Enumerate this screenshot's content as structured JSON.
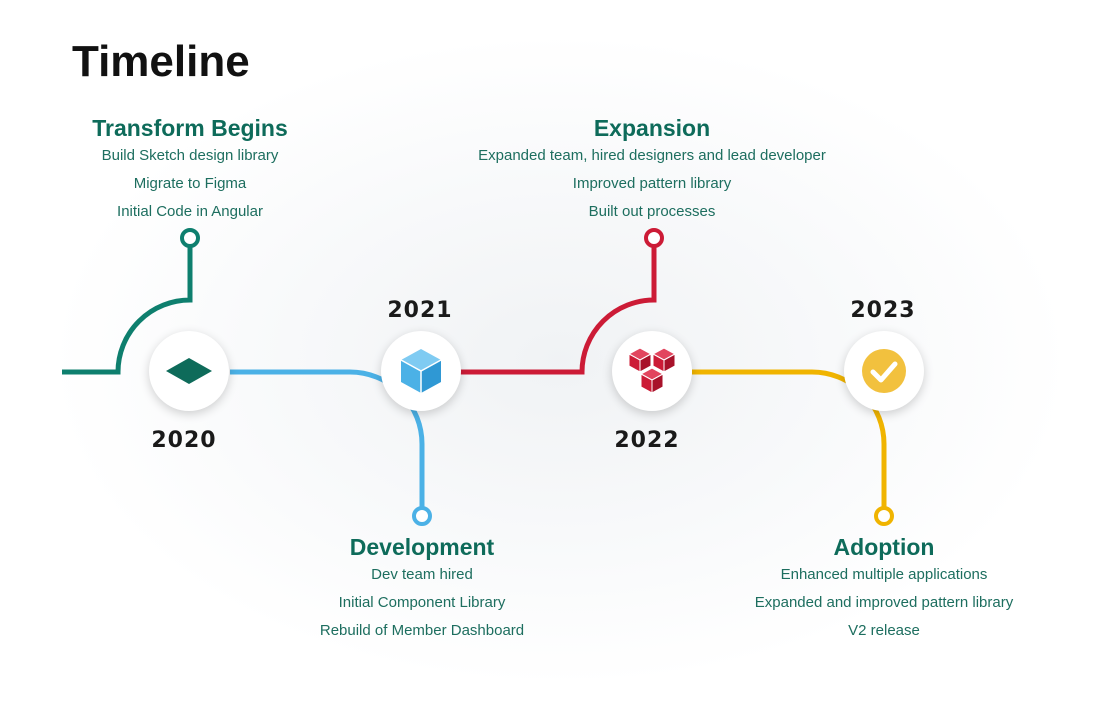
{
  "title": "Timeline",
  "colors": {
    "teal": "#0e7f6e",
    "blue": "#4bb1e6",
    "red": "#cc1b36",
    "yellow": "#f0b400",
    "text": "#0e6b5a"
  },
  "years": {
    "y2020": "2020",
    "y2021": "2021",
    "y2022": "2022",
    "y2023": "2023"
  },
  "icons": {
    "n2020": "diamond-icon",
    "n2021": "cube-icon",
    "n2022": "stacked-cubes-icon",
    "n2023": "check-circle-icon"
  },
  "milestones": {
    "transform": {
      "title": "Transform Begins",
      "items": [
        "Build Sketch design library",
        "Migrate to Figma",
        "Initial Code in Angular"
      ]
    },
    "development": {
      "title": "Development",
      "items": [
        "Dev team hired",
        "Initial Component Library",
        "Rebuild of Member Dashboard"
      ]
    },
    "expansion": {
      "title": "Expansion",
      "items": [
        "Expanded team, hired designers and lead developer",
        "Improved pattern library",
        "Built out processes"
      ]
    },
    "adoption": {
      "title": "Adoption",
      "items": [
        "Enhanced multiple applications",
        "Expanded and improved pattern library",
        "V2 release"
      ]
    }
  }
}
